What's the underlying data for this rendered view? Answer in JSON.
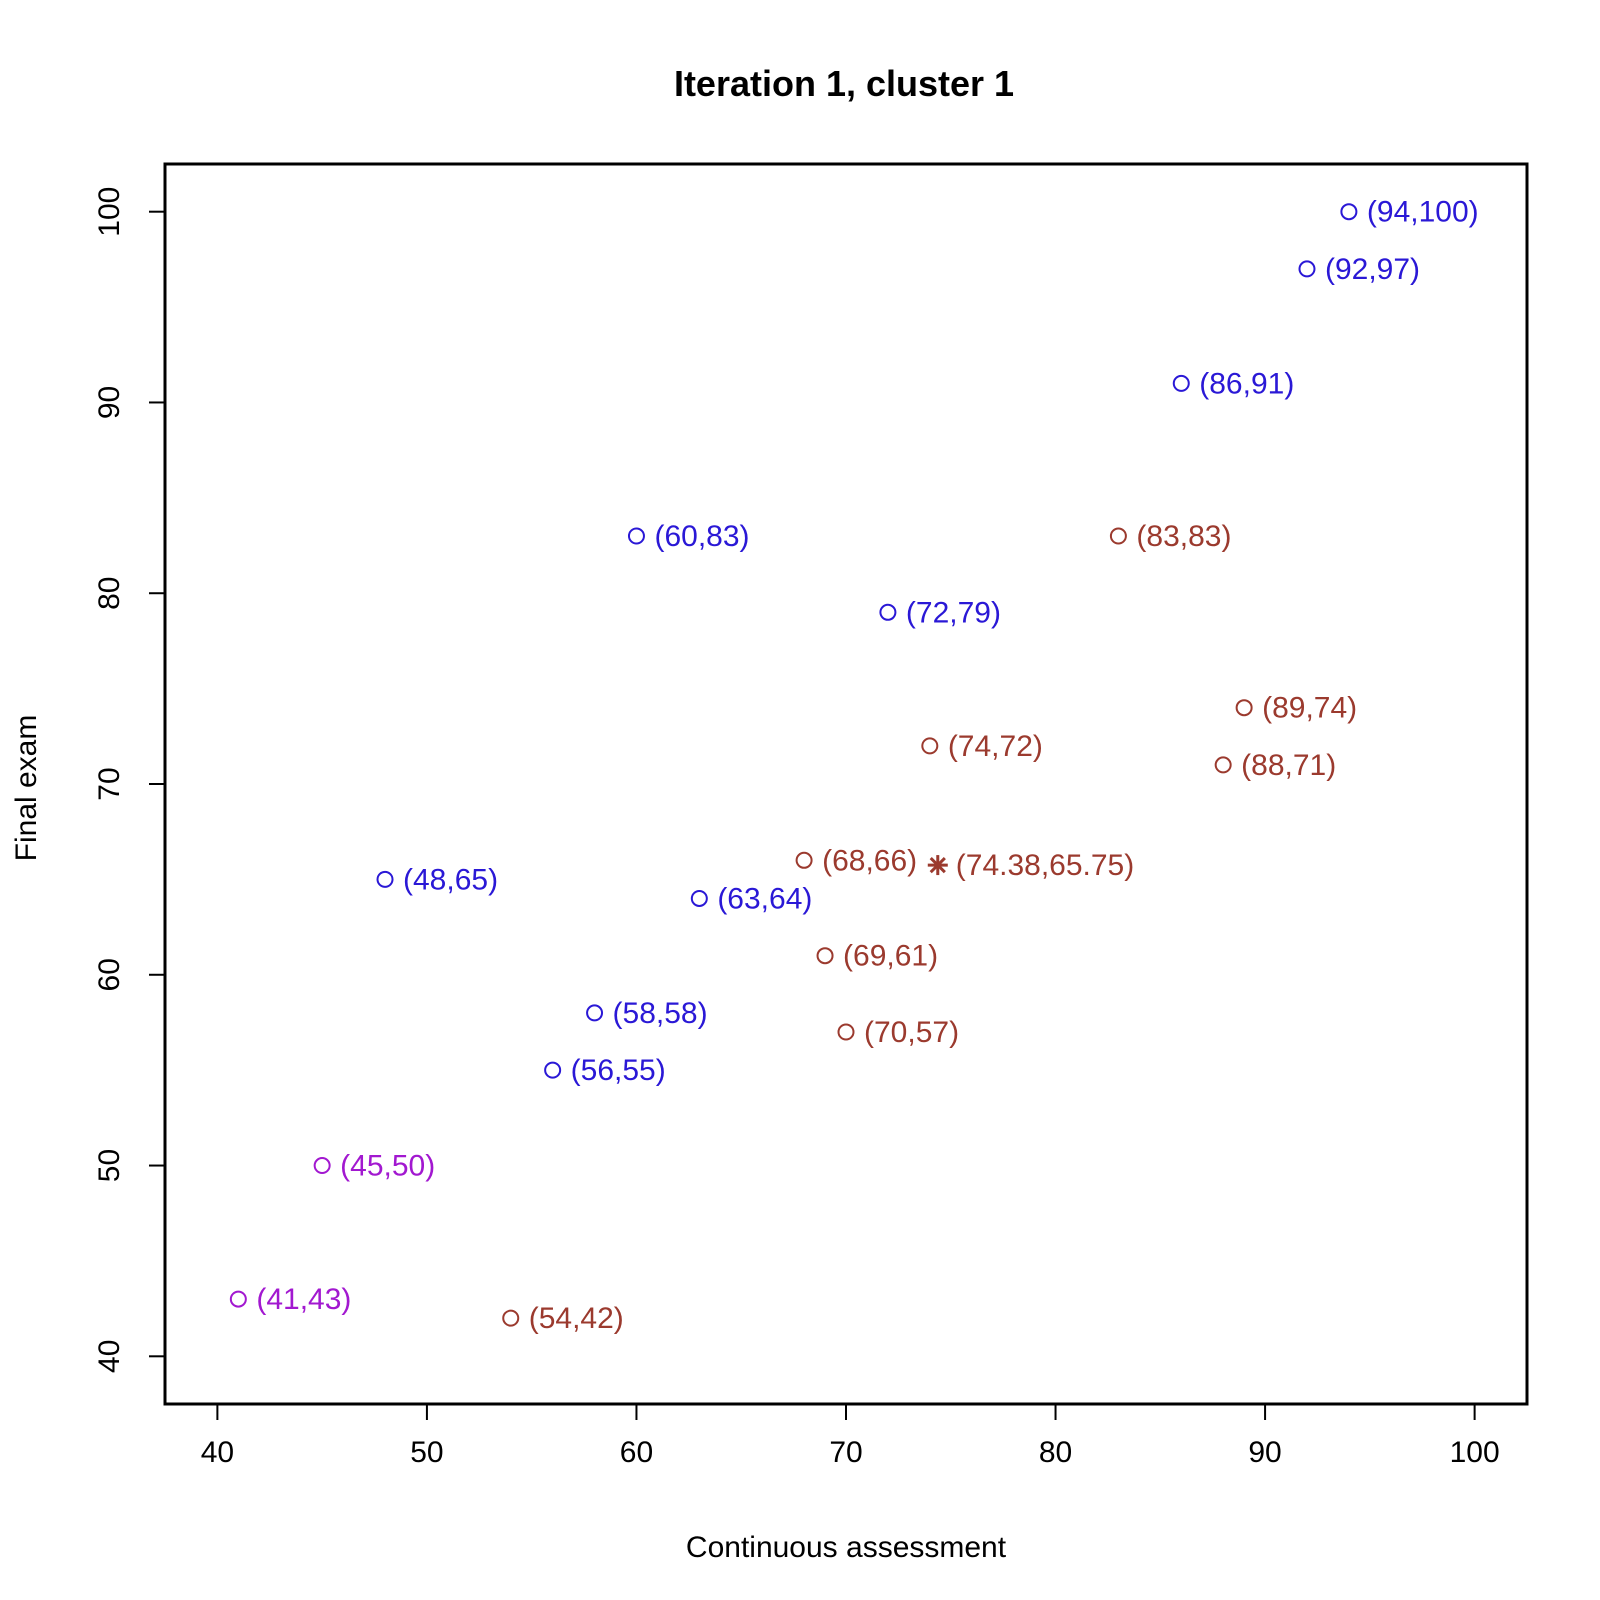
{
  "chart_data": {
    "type": "scatter",
    "title": "Iteration 1, cluster 1",
    "xlabel": "Continuous assessment",
    "ylabel": "Final exam",
    "xlim": [
      37.5,
      102.5
    ],
    "ylim": [
      37.5,
      102.5
    ],
    "xticks": [
      40,
      50,
      60,
      70,
      80,
      90,
      100
    ],
    "yticks": [
      40,
      50,
      60,
      70,
      80,
      90,
      100
    ],
    "grid": false,
    "colors": {
      "blue": "#2a18d6",
      "brown": "#9b3a2e",
      "purple": "#a218d0"
    },
    "points": [
      {
        "x": 94,
        "y": 100,
        "label": "(94,100)",
        "color": "blue",
        "marker": "circle"
      },
      {
        "x": 92,
        "y": 97,
        "label": "(92,97)",
        "color": "blue",
        "marker": "circle"
      },
      {
        "x": 86,
        "y": 91,
        "label": "(86,91)",
        "color": "blue",
        "marker": "circle"
      },
      {
        "x": 60,
        "y": 83,
        "label": "(60,83)",
        "color": "blue",
        "marker": "circle"
      },
      {
        "x": 83,
        "y": 83,
        "label": "(83,83)",
        "color": "brown",
        "marker": "circle"
      },
      {
        "x": 72,
        "y": 79,
        "label": "(72,79)",
        "color": "blue",
        "marker": "circle"
      },
      {
        "x": 89,
        "y": 74,
        "label": "(89,74)",
        "color": "brown",
        "marker": "circle"
      },
      {
        "x": 74,
        "y": 72,
        "label": "(74,72)",
        "color": "brown",
        "marker": "circle"
      },
      {
        "x": 88,
        "y": 71,
        "label": "(88,71)",
        "color": "brown",
        "marker": "circle"
      },
      {
        "x": 68,
        "y": 66,
        "label": "(68,66)",
        "color": "brown",
        "marker": "circle"
      },
      {
        "x": 74.38,
        "y": 65.75,
        "label": "(74.38,65.75)",
        "color": "brown",
        "marker": "star"
      },
      {
        "x": 48,
        "y": 65,
        "label": "(48,65)",
        "color": "blue",
        "marker": "circle"
      },
      {
        "x": 63,
        "y": 64,
        "label": "(63,64)",
        "color": "blue",
        "marker": "circle"
      },
      {
        "x": 69,
        "y": 61,
        "label": "(69,61)",
        "color": "brown",
        "marker": "circle"
      },
      {
        "x": 58,
        "y": 58,
        "label": "(58,58)",
        "color": "blue",
        "marker": "circle"
      },
      {
        "x": 70,
        "y": 57,
        "label": "(70,57)",
        "color": "brown",
        "marker": "circle"
      },
      {
        "x": 56,
        "y": 55,
        "label": "(56,55)",
        "color": "blue",
        "marker": "circle"
      },
      {
        "x": 45,
        "y": 50,
        "label": "(45,50)",
        "color": "purple",
        "marker": "circle"
      },
      {
        "x": 41,
        "y": 43,
        "label": "(41,43)",
        "color": "purple",
        "marker": "circle"
      },
      {
        "x": 54,
        "y": 42,
        "label": "(54,42)",
        "color": "brown",
        "marker": "circle"
      }
    ]
  }
}
